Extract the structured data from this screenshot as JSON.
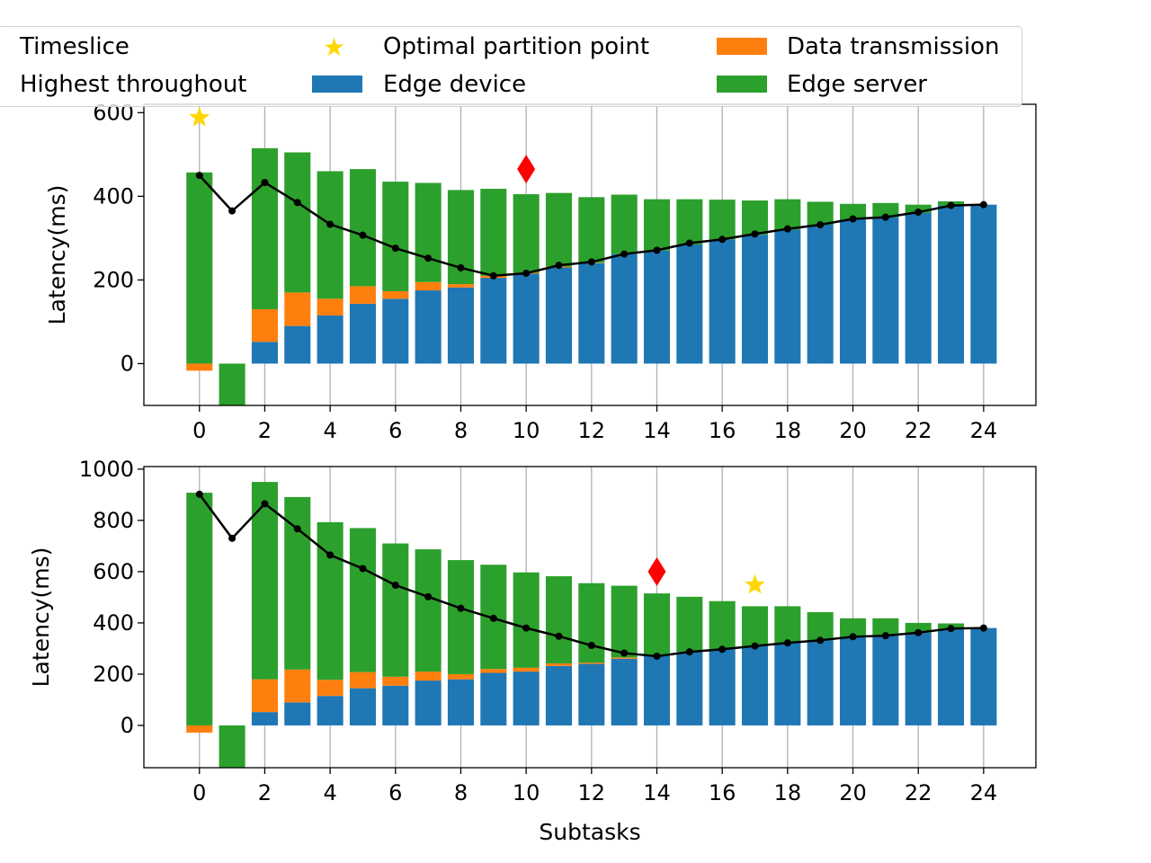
{
  "legend": {
    "timeslice": "Timeslice",
    "highest_throughput": "Highest throughout",
    "optimal_partition": "Optimal partition point",
    "edge_device": "Edge device",
    "data_transmission": "Data transmission",
    "edge_server": "Edge server"
  },
  "colors": {
    "edge_device": "#1f77b4",
    "data_transmission": "#ff7f0e",
    "edge_server": "#2ca02c",
    "line": "#000000",
    "optimal_star": "#ffd700",
    "throughput_marker": "#ff0000",
    "grid": "#b0b0b0"
  },
  "chart_data": [
    {
      "type": "bar",
      "stacked": true,
      "xlabel": "",
      "ylabel": "Latency(ms)",
      "ylim": [
        -100,
        620
      ],
      "yticks": [
        0,
        200,
        400,
        600
      ],
      "xlim": [
        -1.7,
        25.6
      ],
      "xticks": [
        0,
        2,
        4,
        6,
        8,
        10,
        12,
        14,
        16,
        18,
        20,
        22,
        24
      ],
      "grid": "x",
      "categories": [
        0,
        1,
        2,
        3,
        4,
        5,
        6,
        7,
        8,
        9,
        10,
        11,
        12,
        13,
        14,
        15,
        16,
        17,
        18,
        19,
        20,
        21,
        22,
        23,
        24
      ],
      "series": [
        {
          "name": "Edge device",
          "values": [
            0,
            0,
            52,
            90,
            115,
            143,
            155,
            175,
            182,
            205,
            215,
            230,
            240,
            262,
            270,
            285,
            297,
            308,
            320,
            332,
            345,
            350,
            360,
            378,
            380
          ]
        },
        {
          "name": "Data transmission",
          "values": [
            -17,
            0,
            78,
            80,
            40,
            42,
            18,
            20,
            8,
            5,
            2,
            2,
            1,
            0,
            0,
            0,
            0,
            0,
            0,
            0,
            0,
            0,
            0,
            0,
            0
          ]
        },
        {
          "name": "Edge server",
          "values": [
            457,
            -100,
            385,
            335,
            305,
            280,
            262,
            237,
            225,
            208,
            188,
            176,
            157,
            142,
            123,
            108,
            95,
            82,
            73,
            55,
            37,
            34,
            20,
            10,
            0
          ]
        }
      ],
      "line": {
        "name": "Timeslice",
        "values": [
          450,
          365,
          433,
          385,
          333,
          307,
          276,
          252,
          229,
          210,
          216,
          235,
          243,
          262,
          271,
          288,
          297,
          310,
          322,
          332,
          346,
          350,
          362,
          378,
          380
        ]
      },
      "optimal_partition_point": {
        "x": 0,
        "y": 588
      },
      "highest_throughput": {
        "x": 10,
        "y": 465
      }
    },
    {
      "type": "bar",
      "stacked": true,
      "xlabel": "Subtasks",
      "ylabel": "Latency(ms)",
      "ylim": [
        -165,
        1010
      ],
      "yticks": [
        0,
        200,
        400,
        600,
        800,
        1000
      ],
      "xlim": [
        -1.7,
        25.6
      ],
      "xticks": [
        0,
        2,
        4,
        6,
        8,
        10,
        12,
        14,
        16,
        18,
        20,
        22,
        24
      ],
      "grid": "x",
      "categories": [
        0,
        1,
        2,
        3,
        4,
        5,
        6,
        7,
        8,
        9,
        10,
        11,
        12,
        13,
        14,
        15,
        16,
        17,
        18,
        19,
        20,
        21,
        22,
        23,
        24
      ],
      "series": [
        {
          "name": "Edge device",
          "values": [
            0,
            0,
            52,
            90,
            115,
            145,
            155,
            175,
            180,
            205,
            210,
            232,
            240,
            260,
            270,
            287,
            297,
            310,
            322,
            332,
            345,
            350,
            362,
            378,
            380
          ]
        },
        {
          "name": "Data transmission",
          "values": [
            -28,
            0,
            128,
            128,
            63,
            63,
            35,
            35,
            20,
            15,
            15,
            10,
            5,
            5,
            0,
            0,
            0,
            0,
            0,
            0,
            0,
            0,
            0,
            0,
            0
          ]
        },
        {
          "name": "Edge server",
          "values": [
            908,
            -165,
            770,
            673,
            615,
            562,
            520,
            477,
            445,
            407,
            372,
            340,
            310,
            280,
            245,
            215,
            188,
            155,
            143,
            110,
            73,
            68,
            38,
            20,
            0
          ]
        }
      ],
      "line": {
        "name": "Timeslice",
        "values": [
          902,
          730,
          865,
          767,
          665,
          612,
          547,
          502,
          457,
          418,
          380,
          348,
          312,
          282,
          270,
          287,
          297,
          310,
          322,
          332,
          346,
          350,
          362,
          378,
          380
        ]
      },
      "optimal_partition_point": {
        "x": 17,
        "y": 548
      },
      "highest_throughput": {
        "x": 14,
        "y": 600
      }
    }
  ]
}
